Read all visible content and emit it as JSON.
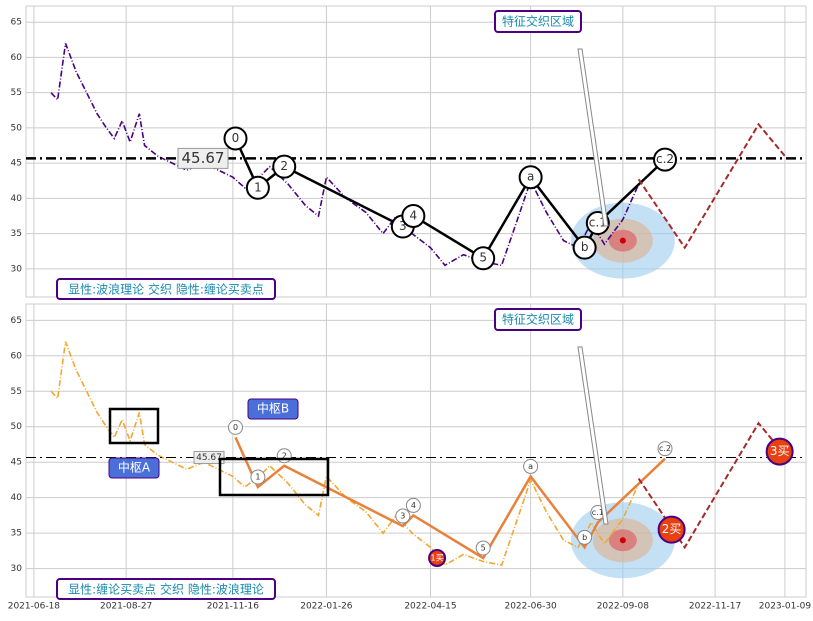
{
  "chart_data": [
    {
      "type": "line",
      "caption": "显性:波浪理论 交织 隐性:缠论买卖点",
      "annotation": "特征交织区域",
      "xlim": [
        "2021-06-12",
        "2023-01-25"
      ],
      "ylim": [
        26,
        67.3
      ],
      "yticks": [
        30,
        35,
        40,
        45,
        50,
        55,
        60,
        65
      ],
      "grid": true,
      "color": "#4b0082",
      "x": [
        "2021-07-01",
        "2021-07-06",
        "2021-07-12",
        "2021-07-20",
        "2021-07-28",
        "2021-08-05",
        "2021-08-12",
        "2021-08-18",
        "2021-08-24",
        "2021-08-30",
        "2021-09-06",
        "2021-09-10",
        "2021-09-20",
        "2021-10-01",
        "2021-10-12",
        "2021-10-25",
        "2021-11-05",
        "2021-11-16",
        "2021-11-25",
        "2021-12-06",
        "2021-12-14",
        "2021-12-28",
        "2022-01-10",
        "2022-01-20",
        "2022-01-26",
        "2022-02-10",
        "2022-02-25",
        "2022-03-10",
        "2022-03-20",
        "2022-04-01",
        "2022-04-15",
        "2022-04-26",
        "2022-05-10",
        "2022-05-25",
        "2022-06-08",
        "2022-06-20",
        "2022-06-30",
        "2022-07-12",
        "2022-07-25",
        "2022-08-05",
        "2022-08-15",
        "2022-08-25",
        "2022-09-08",
        "2022-09-20"
      ],
      "values": [
        55,
        54,
        62,
        58,
        55,
        52,
        50,
        48.5,
        51,
        48,
        52,
        47.5,
        46,
        45,
        44,
        45,
        44,
        43,
        41.5,
        43,
        44.5,
        42,
        39,
        37.5,
        43,
        40,
        38,
        35,
        37.5,
        35,
        33,
        30.5,
        32,
        31,
        30.5,
        37,
        42.5,
        38,
        34,
        33,
        36.5,
        33.5,
        37,
        42
      ],
      "hline": {
        "value": 45.67,
        "label": "45.67"
      },
      "waves": {
        "color": "#000000",
        "labels": [
          "0",
          "1",
          "2",
          "3",
          "4",
          "5",
          "a",
          "b",
          "c.1",
          "c.2"
        ],
        "x": [
          "2021-11-18",
          "2021-12-05",
          "2021-12-25",
          "2022-03-25",
          "2022-04-02",
          "2022-05-25",
          "2022-06-30",
          "2022-08-10",
          "2022-08-20",
          "2022-10-10"
        ],
        "values": [
          48.5,
          41.5,
          44.5,
          36,
          37.5,
          31.5,
          43,
          33,
          36.5,
          45.5
        ]
      },
      "projection": {
        "color": "#a52a2a",
        "x": [
          "2022-09-20",
          "2022-10-25",
          "2022-12-20",
          "2023-01-09"
        ],
        "values": [
          42.7,
          33,
          50.5,
          46
        ]
      }
    },
    {
      "type": "line",
      "caption": "显性:缠论买卖点 交织 隐性:波浪理论",
      "annotation": "特征交织区域",
      "xlim": [
        "2021-06-12",
        "2023-01-25"
      ],
      "ylim": [
        26,
        67.3
      ],
      "yticks": [
        30,
        35,
        40,
        45,
        50,
        55,
        60,
        65
      ],
      "xticks": [
        "2021-06-18",
        "2021-08-27",
        "2021-11-16",
        "2022-01-26",
        "2022-04-15",
        "2022-06-30",
        "2022-09-08",
        "2022-11-17",
        "2023-01-09"
      ],
      "grid": true,
      "color": "#f0a830",
      "x": [
        "2021-07-01",
        "2021-07-06",
        "2021-07-12",
        "2021-07-20",
        "2021-07-28",
        "2021-08-05",
        "2021-08-12",
        "2021-08-18",
        "2021-08-24",
        "2021-08-30",
        "2021-09-06",
        "2021-09-10",
        "2021-09-20",
        "2021-10-01",
        "2021-10-12",
        "2021-10-25",
        "2021-11-05",
        "2021-11-16",
        "2021-11-25",
        "2021-12-06",
        "2021-12-14",
        "2021-12-28",
        "2022-01-10",
        "2022-01-20",
        "2022-01-26",
        "2022-02-10",
        "2022-02-25",
        "2022-03-10",
        "2022-03-20",
        "2022-04-01",
        "2022-04-15",
        "2022-04-26",
        "2022-05-10",
        "2022-05-25",
        "2022-06-08",
        "2022-06-20",
        "2022-06-30",
        "2022-07-12",
        "2022-07-25",
        "2022-08-05",
        "2022-08-15",
        "2022-08-25",
        "2022-09-08",
        "2022-09-20"
      ],
      "values": [
        55,
        54,
        62,
        58,
        55,
        52,
        50,
        48.5,
        51,
        48,
        52,
        47.5,
        46,
        45,
        44,
        45,
        44,
        43,
        41.5,
        43,
        44.5,
        42,
        39,
        37.5,
        43,
        40,
        38,
        35,
        37.5,
        35,
        33,
        30.5,
        32,
        31,
        30.5,
        37,
        42.5,
        38,
        34,
        33,
        36.5,
        33.5,
        37,
        42
      ],
      "hline": {
        "value": 45.67,
        "label": "45.67"
      },
      "centers": [
        "中枢A",
        "中枢B"
      ],
      "waves": {
        "color": "#e8823a",
        "labels": [
          "0",
          "1",
          "2",
          "3",
          "4",
          "5",
          "a",
          "b",
          "c.1",
          "c.2"
        ],
        "x": [
          "2021-11-18",
          "2021-12-05",
          "2021-12-25",
          "2022-03-25",
          "2022-04-02",
          "2022-05-25",
          "2022-06-30",
          "2022-08-10",
          "2022-08-20",
          "2022-10-10"
        ],
        "values": [
          48.5,
          41.5,
          44.5,
          36,
          37.5,
          31.5,
          43,
          33,
          36.5,
          45.5
        ]
      },
      "buys": {
        "labels": [
          "1买",
          "2买",
          "3买"
        ],
        "x": [
          "2022-04-20",
          "2022-10-15",
          "2023-01-05"
        ],
        "values": [
          31.5,
          35.5,
          46.5
        ]
      },
      "projection": {
        "color": "#a52a2a",
        "x": [
          "2022-09-20",
          "2022-10-25",
          "2022-12-20",
          "2023-01-09"
        ],
        "values": [
          42.7,
          33,
          50.5,
          46
        ]
      }
    }
  ]
}
